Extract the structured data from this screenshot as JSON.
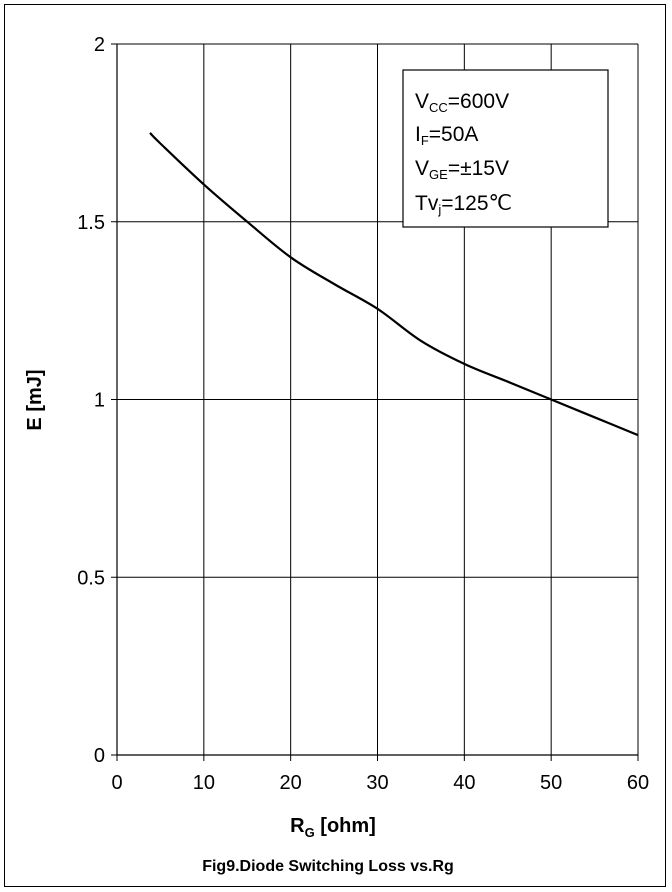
{
  "chart_data": {
    "type": "line",
    "title": "Fig9.Diode Switching Loss vs.Rg",
    "xlabel": {
      "main": "R",
      "sub": "G",
      "unit": "[ohm]"
    },
    "ylabel": "E  [mJ]",
    "xlim": [
      0,
      60
    ],
    "ylim": [
      0,
      2
    ],
    "xticks": [
      0,
      10,
      20,
      30,
      40,
      50,
      60
    ],
    "yticks": [
      0,
      0.5,
      1,
      1.5,
      2
    ],
    "ytick_labels": [
      "0",
      "0.5",
      "1",
      "1.5",
      "2"
    ],
    "grid": true,
    "legend": "none",
    "series": [
      {
        "color": "#000000",
        "x": [
          3.8,
          5,
          10,
          15,
          20,
          25,
          30,
          35,
          40,
          45,
          50,
          55,
          60
        ],
        "y": [
          1.75,
          1.72,
          1.605,
          1.5,
          1.4,
          1.325,
          1.255,
          1.165,
          1.1,
          1.05,
          1.0,
          0.95,
          0.9
        ]
      }
    ],
    "annotations": [
      {
        "main": "V",
        "sub": "CC",
        "rest": "=600V"
      },
      {
        "main": "I",
        "sub": "F",
        "rest": "=50A"
      },
      {
        "main": "V",
        "sub": "GE",
        "rest": "=±15V"
      },
      {
        "main": "Tv",
        "sub": "j",
        "rest": "=125℃"
      }
    ]
  }
}
